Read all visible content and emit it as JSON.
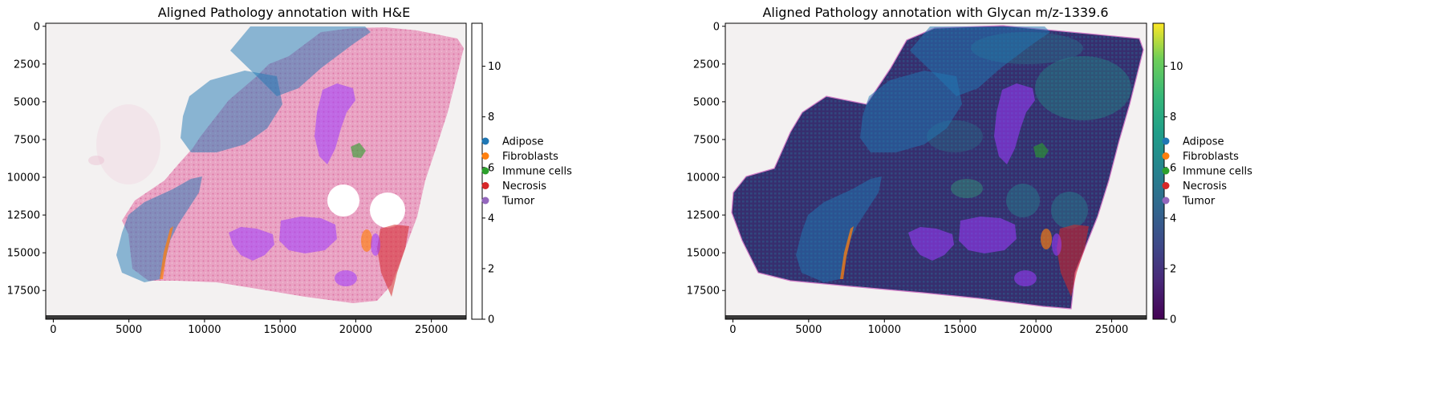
{
  "chart_data": [
    {
      "type": "heatmap",
      "title": "Aligned Pathology annotation with H&E",
      "background": "H&E stained tissue image",
      "xlabel": "",
      "ylabel": "",
      "xlim": [
        -500,
        27300
      ],
      "ylim": [
        19400,
        -200
      ],
      "x_ticks": [
        0,
        5000,
        10000,
        15000,
        20000,
        25000
      ],
      "y_ticks": [
        0,
        2500,
        5000,
        7500,
        10000,
        12500,
        15000,
        17500
      ],
      "colorbar": {
        "colormap": "white",
        "range": [
          0,
          11.7
        ],
        "ticks": [
          0,
          2,
          4,
          6,
          8,
          10
        ]
      },
      "legend": {
        "placement": "right",
        "entries": [
          {
            "name": "Adipose",
            "color": "#1f77b4"
          },
          {
            "name": "Fibroblasts",
            "color": "#ff7f0e"
          },
          {
            "name": "Immune cells",
            "color": "#2ca02c"
          },
          {
            "name": "Necrosis",
            "color": "#d62728"
          },
          {
            "name": "Tumor",
            "color": "#9467bd"
          }
        ]
      }
    },
    {
      "type": "heatmap",
      "title": "Aligned Pathology annotation with Glycan m/z-1339.6",
      "background": "glycan intensity map (viridis)",
      "xlabel": "",
      "ylabel": "",
      "xlim": [
        -500,
        27300
      ],
      "ylim": [
        19400,
        -200
      ],
      "x_ticks": [
        0,
        5000,
        10000,
        15000,
        20000,
        25000
      ],
      "y_ticks": [
        0,
        2500,
        5000,
        7500,
        10000,
        12500,
        15000,
        17500
      ],
      "colorbar": {
        "colormap": "viridis",
        "range": [
          0,
          11.7
        ],
        "ticks": [
          0,
          2,
          4,
          6,
          8,
          10
        ]
      },
      "legend": {
        "placement": "right",
        "entries": [
          {
            "name": "Adipose",
            "color": "#1f77b4"
          },
          {
            "name": "Fibroblasts",
            "color": "#ff7f0e"
          },
          {
            "name": "Immune cells",
            "color": "#2ca02c"
          },
          {
            "name": "Necrosis",
            "color": "#d62728"
          },
          {
            "name": "Tumor",
            "color": "#9467bd"
          }
        ]
      }
    }
  ]
}
